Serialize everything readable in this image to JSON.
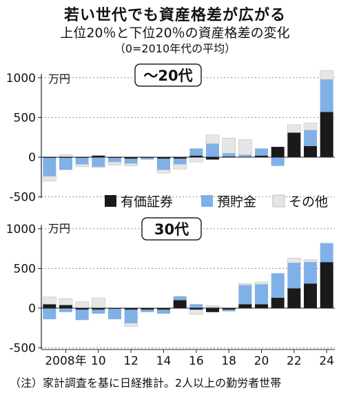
{
  "title": "若い世代でも資産格差が広がる",
  "subtitle": "上位20％と下位20％の資産格差の変化",
  "note_top": "（0=2010年代の平均）",
  "footnote": "（注）家計調査を基に日経推計。2人以上の勤労者世帯",
  "colors": {
    "securities": "#1a1a1a",
    "savings": "#7fb0e8",
    "other": "#e6e6e6"
  },
  "legend": [
    {
      "key": "securities",
      "label": "有価証券"
    },
    {
      "key": "savings",
      "label": "預貯金"
    },
    {
      "key": "other",
      "label": "その他"
    }
  ],
  "x_ticks": [
    "2008年",
    "10",
    "12",
    "14",
    "16",
    "18",
    "20",
    "22",
    "24"
  ],
  "chart_data": [
    {
      "type": "bar",
      "stacked": true,
      "panel_label": "～20代",
      "unit_label": "万円",
      "years": [
        2007,
        2008,
        2009,
        2010,
        2011,
        2012,
        2013,
        2014,
        2015,
        2016,
        2017,
        2018,
        2019,
        2020,
        2021,
        2022,
        2023,
        2024
      ],
      "ylim": [
        -550,
        1100
      ],
      "yticks": [
        -500,
        0,
        500,
        1000
      ],
      "ytick_labels": [
        "-500",
        "0",
        "500",
        "1000"
      ],
      "series": [
        {
          "key": "securities",
          "name": "有価証券",
          "values": [
            -10,
            -10,
            -10,
            20,
            -10,
            -20,
            -10,
            -20,
            -20,
            20,
            -30,
            10,
            0,
            20,
            130,
            310,
            140,
            570
          ]
        },
        {
          "key": "savings",
          "name": "預貯金",
          "values": [
            -230,
            -150,
            -80,
            -120,
            -50,
            -60,
            -20,
            -140,
            -70,
            90,
            170,
            40,
            30,
            90,
            -110,
            0,
            200,
            410
          ]
        },
        {
          "key": "other",
          "name": "その他",
          "values": [
            -60,
            30,
            -30,
            -10,
            -40,
            -30,
            0,
            -40,
            -60,
            -60,
            110,
            190,
            190,
            0,
            0,
            100,
            90,
            110
          ]
        }
      ]
    },
    {
      "type": "bar",
      "stacked": true,
      "panel_label": "30代",
      "unit_label": "万円",
      "years": [
        2007,
        2008,
        2009,
        2010,
        2011,
        2012,
        2013,
        2014,
        2015,
        2016,
        2017,
        2018,
        2019,
        2020,
        2021,
        2022,
        2023,
        2024
      ],
      "ylim": [
        -550,
        1100
      ],
      "yticks": [
        -500,
        0,
        500,
        1000
      ],
      "ytick_labels": [
        "-500",
        "0",
        "500",
        "1000"
      ],
      "series": [
        {
          "key": "securities",
          "name": "有価証券",
          "values": [
            50,
            40,
            -20,
            -20,
            -10,
            -20,
            -20,
            -20,
            100,
            -20,
            -50,
            -20,
            50,
            50,
            130,
            250,
            310,
            580
          ]
        },
        {
          "key": "savings",
          "name": "預貯金",
          "values": [
            -140,
            -50,
            -130,
            -50,
            -130,
            -170,
            -30,
            -50,
            50,
            50,
            10,
            -20,
            240,
            250,
            310,
            320,
            270,
            240
          ]
        },
        {
          "key": "other",
          "name": "その他",
          "values": [
            90,
            80,
            80,
            130,
            0,
            -40,
            0,
            0,
            0,
            -60,
            20,
            0,
            20,
            30,
            0,
            60,
            30,
            0
          ]
        }
      ]
    }
  ]
}
